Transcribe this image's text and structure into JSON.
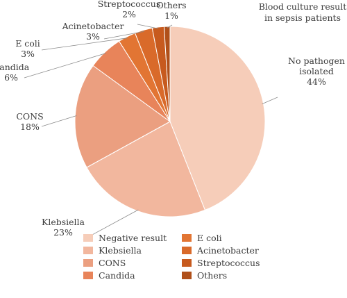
{
  "chart_data": {
    "type": "pie",
    "title": "Blood culture result in sepsis patients",
    "title_lines": [
      "Blood culture result",
      "in sepsis patients"
    ],
    "slices": [
      {
        "label_lines": [
          "No pathogen",
          "isolated",
          "44%"
        ],
        "value": 44,
        "color": "#f6cdb9"
      },
      {
        "label_lines": [
          "Klebsiella",
          "23%"
        ],
        "value": 23,
        "color": "#f2b79e"
      },
      {
        "label_lines": [
          "CONS",
          "18%"
        ],
        "value": 18,
        "color": "#eb9f80"
      },
      {
        "label_lines": [
          "Candida",
          "6%"
        ],
        "value": 6,
        "color": "#e8845a"
      },
      {
        "label_lines": [
          "E coli",
          "3%"
        ],
        "value": 3,
        "color": "#e27533"
      },
      {
        "label_lines": [
          "Acinetobacter",
          "3%"
        ],
        "value": 3,
        "color": "#d96a2a"
      },
      {
        "label_lines": [
          "Streptococcus",
          "2%"
        ],
        "value": 2,
        "color": "#c75a1e"
      },
      {
        "label_lines": [
          "Others",
          "1%"
        ],
        "value": 1,
        "color": "#b0501a"
      }
    ],
    "legend": [
      {
        "label": "Negative result",
        "color": "#f6cdb9"
      },
      {
        "label": "Klebsiella",
        "color": "#f2b79e"
      },
      {
        "label": "CONS",
        "color": "#eb9f80"
      },
      {
        "label": "Candida",
        "color": "#e8845a"
      },
      {
        "label": "E coli",
        "color": "#e27533"
      },
      {
        "label": "Acinetobacter",
        "color": "#d96a2a"
      },
      {
        "label": "Streptococcus",
        "color": "#c75a1e"
      },
      {
        "label": "Others",
        "color": "#b0501a"
      }
    ],
    "legend_placement": "bottom",
    "grid": false
  }
}
